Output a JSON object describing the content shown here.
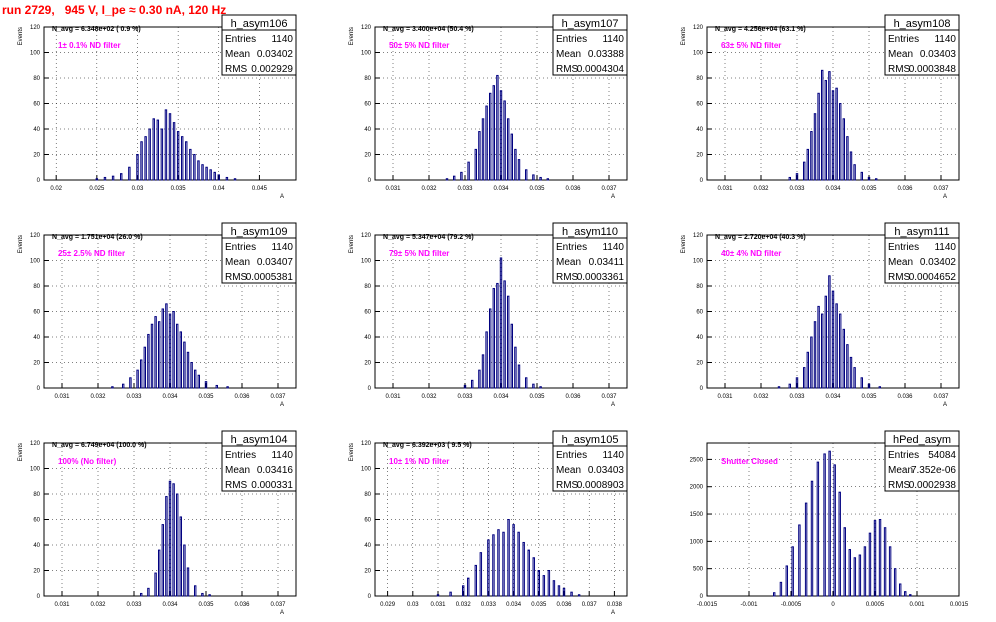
{
  "canvas_title": "run 2729,   945 V, I_pe ≈ 0.30 nA, 120 Hz",
  "colors": {
    "histogram": "#000080",
    "note": "#ff00ff",
    "title": "#ff0000",
    "grid": "#000000"
  },
  "chart_data": [
    {
      "type": "bar",
      "histogram_name": "h_asym106",
      "stats": {
        "Entries": "1140",
        "Mean": "0.03402",
        "RMS": "0.002929"
      },
      "n_avg_text": "N_avg = 6.348e+02 ( 0.9 %)",
      "note": "1± 0.1% ND filter",
      "ylabel": "Events",
      "xlabel": "A",
      "xlim": [
        0.0185,
        0.0495
      ],
      "ylim": [
        0,
        120
      ],
      "xticks": [
        0.02,
        0.025,
        0.03,
        0.035,
        0.04,
        0.045
      ],
      "xtick_labels": [
        "0.02",
        "0.025",
        "0.03",
        "0.035",
        "0.04",
        "0.045"
      ],
      "yticks": [
        0,
        20,
        40,
        60,
        80,
        100,
        120
      ],
      "ytick_labels": [
        "0",
        "20",
        "40",
        "60",
        "80",
        "100",
        "120"
      ],
      "bins": [
        [
          0.025,
          1
        ],
        [
          0.026,
          2
        ],
        [
          0.027,
          3
        ],
        [
          0.028,
          5
        ],
        [
          0.029,
          10
        ],
        [
          0.03,
          20
        ],
        [
          0.0305,
          30
        ],
        [
          0.031,
          34
        ],
        [
          0.0315,
          40
        ],
        [
          0.032,
          48
        ],
        [
          0.0325,
          47
        ],
        [
          0.033,
          40
        ],
        [
          0.0335,
          55
        ],
        [
          0.034,
          52
        ],
        [
          0.0345,
          45
        ],
        [
          0.035,
          38
        ],
        [
          0.0355,
          34
        ],
        [
          0.036,
          30
        ],
        [
          0.0365,
          24
        ],
        [
          0.037,
          20
        ],
        [
          0.0375,
          15
        ],
        [
          0.038,
          12
        ],
        [
          0.0385,
          10
        ],
        [
          0.039,
          8
        ],
        [
          0.0395,
          6
        ],
        [
          0.04,
          4
        ],
        [
          0.041,
          2
        ],
        [
          0.042,
          1
        ]
      ]
    },
    {
      "type": "bar",
      "histogram_name": "h_asym107",
      "stats": {
        "Entries": "1140",
        "Mean": "0.03388",
        "RMS": "0.0004304"
      },
      "n_avg_text": "N_avg = 3.400e+04 (50.4 %)",
      "note": "50± 5% ND filter",
      "ylabel": "Events",
      "xlabel": "A",
      "xlim": [
        0.0305,
        0.0375
      ],
      "ylim": [
        0,
        120
      ],
      "xticks": [
        0.031,
        0.032,
        0.033,
        0.034,
        0.035,
        0.036,
        0.037
      ],
      "xtick_labels": [
        "0.031",
        "0.032",
        "0.033",
        "0.034",
        "0.035",
        "0.036",
        "0.037"
      ],
      "yticks": [
        0,
        20,
        40,
        60,
        80,
        100,
        120
      ],
      "ytick_labels": [
        "0",
        "20",
        "40",
        "60",
        "80",
        "100",
        "120"
      ],
      "bins": [
        [
          0.0325,
          1
        ],
        [
          0.0327,
          3
        ],
        [
          0.0329,
          6
        ],
        [
          0.0331,
          14
        ],
        [
          0.0333,
          24
        ],
        [
          0.0334,
          38
        ],
        [
          0.0335,
          48
        ],
        [
          0.0336,
          58
        ],
        [
          0.0337,
          68
        ],
        [
          0.0338,
          74
        ],
        [
          0.0339,
          82
        ],
        [
          0.034,
          70
        ],
        [
          0.0341,
          62
        ],
        [
          0.0342,
          48
        ],
        [
          0.0343,
          36
        ],
        [
          0.0344,
          24
        ],
        [
          0.0345,
          16
        ],
        [
          0.0347,
          8
        ],
        [
          0.0349,
          4
        ],
        [
          0.0351,
          2
        ],
        [
          0.0353,
          1
        ]
      ]
    },
    {
      "type": "bar",
      "histogram_name": "h_asym108",
      "stats": {
        "Entries": "1140",
        "Mean": "0.03403",
        "RMS": "0.0003848"
      },
      "n_avg_text": "N_avg = 4.256e+04 (63.1 %)",
      "note": "63± 5% ND filter",
      "ylabel": "Events",
      "xlabel": "A",
      "xlim": [
        0.0305,
        0.0375
      ],
      "ylim": [
        0,
        120
      ],
      "xticks": [
        0.031,
        0.032,
        0.033,
        0.034,
        0.035,
        0.036,
        0.037
      ],
      "xtick_labels": [
        "0.031",
        "0.032",
        "0.033",
        "0.034",
        "0.035",
        "0.036",
        "0.037"
      ],
      "yticks": [
        0,
        20,
        40,
        60,
        80,
        100,
        120
      ],
      "ytick_labels": [
        "0",
        "20",
        "40",
        "60",
        "80",
        "100",
        "120"
      ],
      "bins": [
        [
          0.0328,
          2
        ],
        [
          0.033,
          5
        ],
        [
          0.0332,
          14
        ],
        [
          0.0333,
          24
        ],
        [
          0.0334,
          38
        ],
        [
          0.0335,
          52
        ],
        [
          0.0336,
          68
        ],
        [
          0.0337,
          86
        ],
        [
          0.0338,
          78
        ],
        [
          0.0339,
          85
        ],
        [
          0.034,
          70
        ],
        [
          0.0341,
          72
        ],
        [
          0.0342,
          60
        ],
        [
          0.0343,
          48
        ],
        [
          0.0344,
          34
        ],
        [
          0.0345,
          22
        ],
        [
          0.0346,
          12
        ],
        [
          0.0348,
          6
        ],
        [
          0.035,
          2
        ],
        [
          0.0352,
          1
        ]
      ]
    },
    {
      "type": "bar",
      "histogram_name": "h_asym109",
      "stats": {
        "Entries": "1140",
        "Mean": "0.03407",
        "RMS": "0.0005381"
      },
      "n_avg_text": "N_avg = 1.751e+04 (26.0 %)",
      "note": "25± 2.5% ND filter",
      "ylabel": "Events",
      "xlabel": "A",
      "xlim": [
        0.0305,
        0.0375
      ],
      "ylim": [
        0,
        120
      ],
      "xticks": [
        0.031,
        0.032,
        0.033,
        0.034,
        0.035,
        0.036,
        0.037
      ],
      "xtick_labels": [
        "0.031",
        "0.032",
        "0.033",
        "0.034",
        "0.035",
        "0.036",
        "0.037"
      ],
      "yticks": [
        0,
        20,
        40,
        60,
        80,
        100,
        120
      ],
      "ytick_labels": [
        "0",
        "20",
        "40",
        "60",
        "80",
        "100",
        "120"
      ],
      "bins": [
        [
          0.0324,
          1
        ],
        [
          0.0327,
          3
        ],
        [
          0.0329,
          8
        ],
        [
          0.0331,
          14
        ],
        [
          0.0332,
          22
        ],
        [
          0.0333,
          32
        ],
        [
          0.0334,
          42
        ],
        [
          0.0335,
          50
        ],
        [
          0.0336,
          56
        ],
        [
          0.0337,
          52
        ],
        [
          0.0338,
          62
        ],
        [
          0.0339,
          66
        ],
        [
          0.034,
          58
        ],
        [
          0.0341,
          60
        ],
        [
          0.0342,
          50
        ],
        [
          0.0343,
          44
        ],
        [
          0.0344,
          36
        ],
        [
          0.0345,
          28
        ],
        [
          0.0346,
          20
        ],
        [
          0.0347,
          14
        ],
        [
          0.0348,
          10
        ],
        [
          0.035,
          5
        ],
        [
          0.0353,
          2
        ],
        [
          0.0356,
          1
        ]
      ]
    },
    {
      "type": "bar",
      "histogram_name": "h_asym110",
      "stats": {
        "Entries": "1140",
        "Mean": "0.03411",
        "RMS": "0.0003361"
      },
      "n_avg_text": "N_avg = 5.347e+04 (79.2 %)",
      "note": "79± 5% ND filter",
      "ylabel": "Events",
      "xlabel": "A",
      "xlim": [
        0.0305,
        0.0375
      ],
      "ylim": [
        0,
        120
      ],
      "xticks": [
        0.031,
        0.032,
        0.033,
        0.034,
        0.035,
        0.036,
        0.037
      ],
      "xtick_labels": [
        "0.031",
        "0.032",
        "0.033",
        "0.034",
        "0.035",
        "0.036",
        "0.037"
      ],
      "yticks": [
        0,
        20,
        40,
        60,
        80,
        100,
        120
      ],
      "ytick_labels": [
        "0",
        "20",
        "40",
        "60",
        "80",
        "100",
        "120"
      ],
      "bins": [
        [
          0.033,
          2
        ],
        [
          0.0332,
          6
        ],
        [
          0.0334,
          14
        ],
        [
          0.0335,
          26
        ],
        [
          0.0336,
          44
        ],
        [
          0.0337,
          62
        ],
        [
          0.0338,
          78
        ],
        [
          0.0339,
          82
        ],
        [
          0.034,
          102
        ],
        [
          0.0341,
          84
        ],
        [
          0.0342,
          72
        ],
        [
          0.0343,
          50
        ],
        [
          0.0344,
          32
        ],
        [
          0.0345,
          18
        ],
        [
          0.0347,
          8
        ],
        [
          0.0349,
          3
        ],
        [
          0.0351,
          1
        ]
      ]
    },
    {
      "type": "bar",
      "histogram_name": "h_asym111",
      "stats": {
        "Entries": "1140",
        "Mean": "0.03402",
        "RMS": "0.0004652"
      },
      "n_avg_text": "N_avg = 2.720e+04 (40.3 %)",
      "note": "40± 4% ND filter",
      "ylabel": "Events",
      "xlabel": "A",
      "xlim": [
        0.0305,
        0.0375
      ],
      "ylim": [
        0,
        120
      ],
      "xticks": [
        0.031,
        0.032,
        0.033,
        0.034,
        0.035,
        0.036,
        0.037
      ],
      "xtick_labels": [
        "0.031",
        "0.032",
        "0.033",
        "0.034",
        "0.035",
        "0.036",
        "0.037"
      ],
      "yticks": [
        0,
        20,
        40,
        60,
        80,
        100,
        120
      ],
      "ytick_labels": [
        "0",
        "20",
        "40",
        "60",
        "80",
        "100",
        "120"
      ],
      "bins": [
        [
          0.0325,
          1
        ],
        [
          0.0328,
          3
        ],
        [
          0.033,
          8
        ],
        [
          0.0332,
          16
        ],
        [
          0.0333,
          28
        ],
        [
          0.0334,
          40
        ],
        [
          0.0335,
          52
        ],
        [
          0.0336,
          64
        ],
        [
          0.0337,
          58
        ],
        [
          0.0338,
          72
        ],
        [
          0.0339,
          88
        ],
        [
          0.034,
          76
        ],
        [
          0.0341,
          66
        ],
        [
          0.0342,
          58
        ],
        [
          0.0343,
          46
        ],
        [
          0.0344,
          34
        ],
        [
          0.0345,
          24
        ],
        [
          0.0346,
          16
        ],
        [
          0.0348,
          8
        ],
        [
          0.035,
          3
        ],
        [
          0.0353,
          1
        ]
      ]
    },
    {
      "type": "bar",
      "histogram_name": "h_asym104",
      "stats": {
        "Entries": "1140",
        "Mean": "0.03416",
        "RMS": "0.000331"
      },
      "n_avg_text": "N_avg = 6.749e+04 (100.0 %)",
      "note": "100% (No filter)",
      "ylabel": "Events",
      "xlabel": "A",
      "xlim": [
        0.0305,
        0.0375
      ],
      "ylim": [
        0,
        120
      ],
      "xticks": [
        0.031,
        0.032,
        0.033,
        0.034,
        0.035,
        0.036,
        0.037
      ],
      "xtick_labels": [
        "0.031",
        "0.032",
        "0.033",
        "0.034",
        "0.035",
        "0.036",
        "0.037"
      ],
      "yticks": [
        0,
        20,
        40,
        60,
        80,
        100,
        120
      ],
      "ytick_labels": [
        "0",
        "20",
        "40",
        "60",
        "80",
        "100",
        "120"
      ],
      "bins": [
        [
          0.0332,
          2
        ],
        [
          0.0334,
          6
        ],
        [
          0.0336,
          18
        ],
        [
          0.0337,
          36
        ],
        [
          0.0338,
          56
        ],
        [
          0.0339,
          78
        ],
        [
          0.034,
          90
        ],
        [
          0.0341,
          88
        ],
        [
          0.0342,
          80
        ],
        [
          0.0343,
          62
        ],
        [
          0.0344,
          40
        ],
        [
          0.0345,
          22
        ],
        [
          0.0347,
          8
        ],
        [
          0.0349,
          2
        ],
        [
          0.0351,
          1
        ]
      ]
    },
    {
      "type": "bar",
      "histogram_name": "h_asym105",
      "stats": {
        "Entries": "1140",
        "Mean": "0.03403",
        "RMS": "0.0008903"
      },
      "n_avg_text": "N_avg = 6.392e+03 ( 9.5 %)",
      "note": "10± 1% ND filter",
      "ylabel": "Events",
      "xlabel": "A",
      "xlim": [
        0.0285,
        0.0385
      ],
      "ylim": [
        0,
        120
      ],
      "xticks": [
        0.029,
        0.03,
        0.031,
        0.032,
        0.033,
        0.034,
        0.035,
        0.036,
        0.037,
        0.038
      ],
      "xtick_labels": [
        "0.029",
        "0.03",
        "0.031",
        "0.032",
        "0.033",
        "0.034",
        "0.035",
        "0.036",
        "0.037",
        "0.038"
      ],
      "yticks": [
        0,
        20,
        40,
        60,
        80,
        100,
        120
      ],
      "ytick_labels": [
        "0",
        "20",
        "40",
        "60",
        "80",
        "100",
        "120"
      ],
      "bins": [
        [
          0.031,
          1
        ],
        [
          0.0315,
          3
        ],
        [
          0.032,
          8
        ],
        [
          0.0322,
          14
        ],
        [
          0.0325,
          24
        ],
        [
          0.0327,
          34
        ],
        [
          0.033,
          44
        ],
        [
          0.0332,
          48
        ],
        [
          0.0334,
          52
        ],
        [
          0.0336,
          50
        ],
        [
          0.0338,
          60
        ],
        [
          0.034,
          56
        ],
        [
          0.0342,
          50
        ],
        [
          0.0344,
          42
        ],
        [
          0.0346,
          36
        ],
        [
          0.0348,
          30
        ],
        [
          0.035,
          20
        ],
        [
          0.0352,
          16
        ],
        [
          0.0354,
          20
        ],
        [
          0.0356,
          12
        ],
        [
          0.0358,
          8
        ],
        [
          0.036,
          6
        ],
        [
          0.0363,
          3
        ],
        [
          0.0366,
          1
        ]
      ]
    },
    {
      "type": "bar",
      "histogram_name": "hPed_asym",
      "stats": {
        "Entries": "54084",
        "Mean": "7.352e-06",
        "RMS": "0.0002938"
      },
      "n_avg_text": "",
      "note": "Shutter Closed",
      "ylabel": "",
      "xlabel": "",
      "xlim": [
        -0.0015,
        0.0015
      ],
      "ylim": [
        0,
        2800
      ],
      "xticks": [
        -0.0015,
        -0.001,
        -0.0005,
        0,
        0.0005,
        0.001,
        0.0015
      ],
      "xtick_labels": [
        "-0.0015",
        "-0.001",
        "-0.0005",
        "0",
        "0.0005",
        "0.001",
        "0.0015"
      ],
      "yticks": [
        0,
        500,
        1000,
        1500,
        2000,
        2500
      ],
      "ytick_labels": [
        "0",
        "500",
        "1000",
        "1500",
        "2000",
        "2500"
      ],
      "bins": [
        [
          -0.0007,
          60
        ],
        [
          -0.00062,
          250
        ],
        [
          -0.00055,
          550
        ],
        [
          -0.00048,
          900
        ],
        [
          -0.0004,
          1300
        ],
        [
          -0.00032,
          1700
        ],
        [
          -0.00025,
          2100
        ],
        [
          -0.00018,
          2450
        ],
        [
          -0.0001,
          2600
        ],
        [
          -4e-05,
          2650
        ],
        [
          2e-05,
          2400
        ],
        [
          8e-05,
          1900
        ],
        [
          0.00014,
          1250
        ],
        [
          0.0002,
          850
        ],
        [
          0.00026,
          700
        ],
        [
          0.00032,
          750
        ],
        [
          0.00038,
          900
        ],
        [
          0.00044,
          1150
        ],
        [
          0.0005,
          1380
        ],
        [
          0.00056,
          1400
        ],
        [
          0.00062,
          1250
        ],
        [
          0.00068,
          900
        ],
        [
          0.00074,
          500
        ],
        [
          0.0008,
          220
        ],
        [
          0.00086,
          80
        ],
        [
          0.00092,
          25
        ]
      ]
    }
  ]
}
